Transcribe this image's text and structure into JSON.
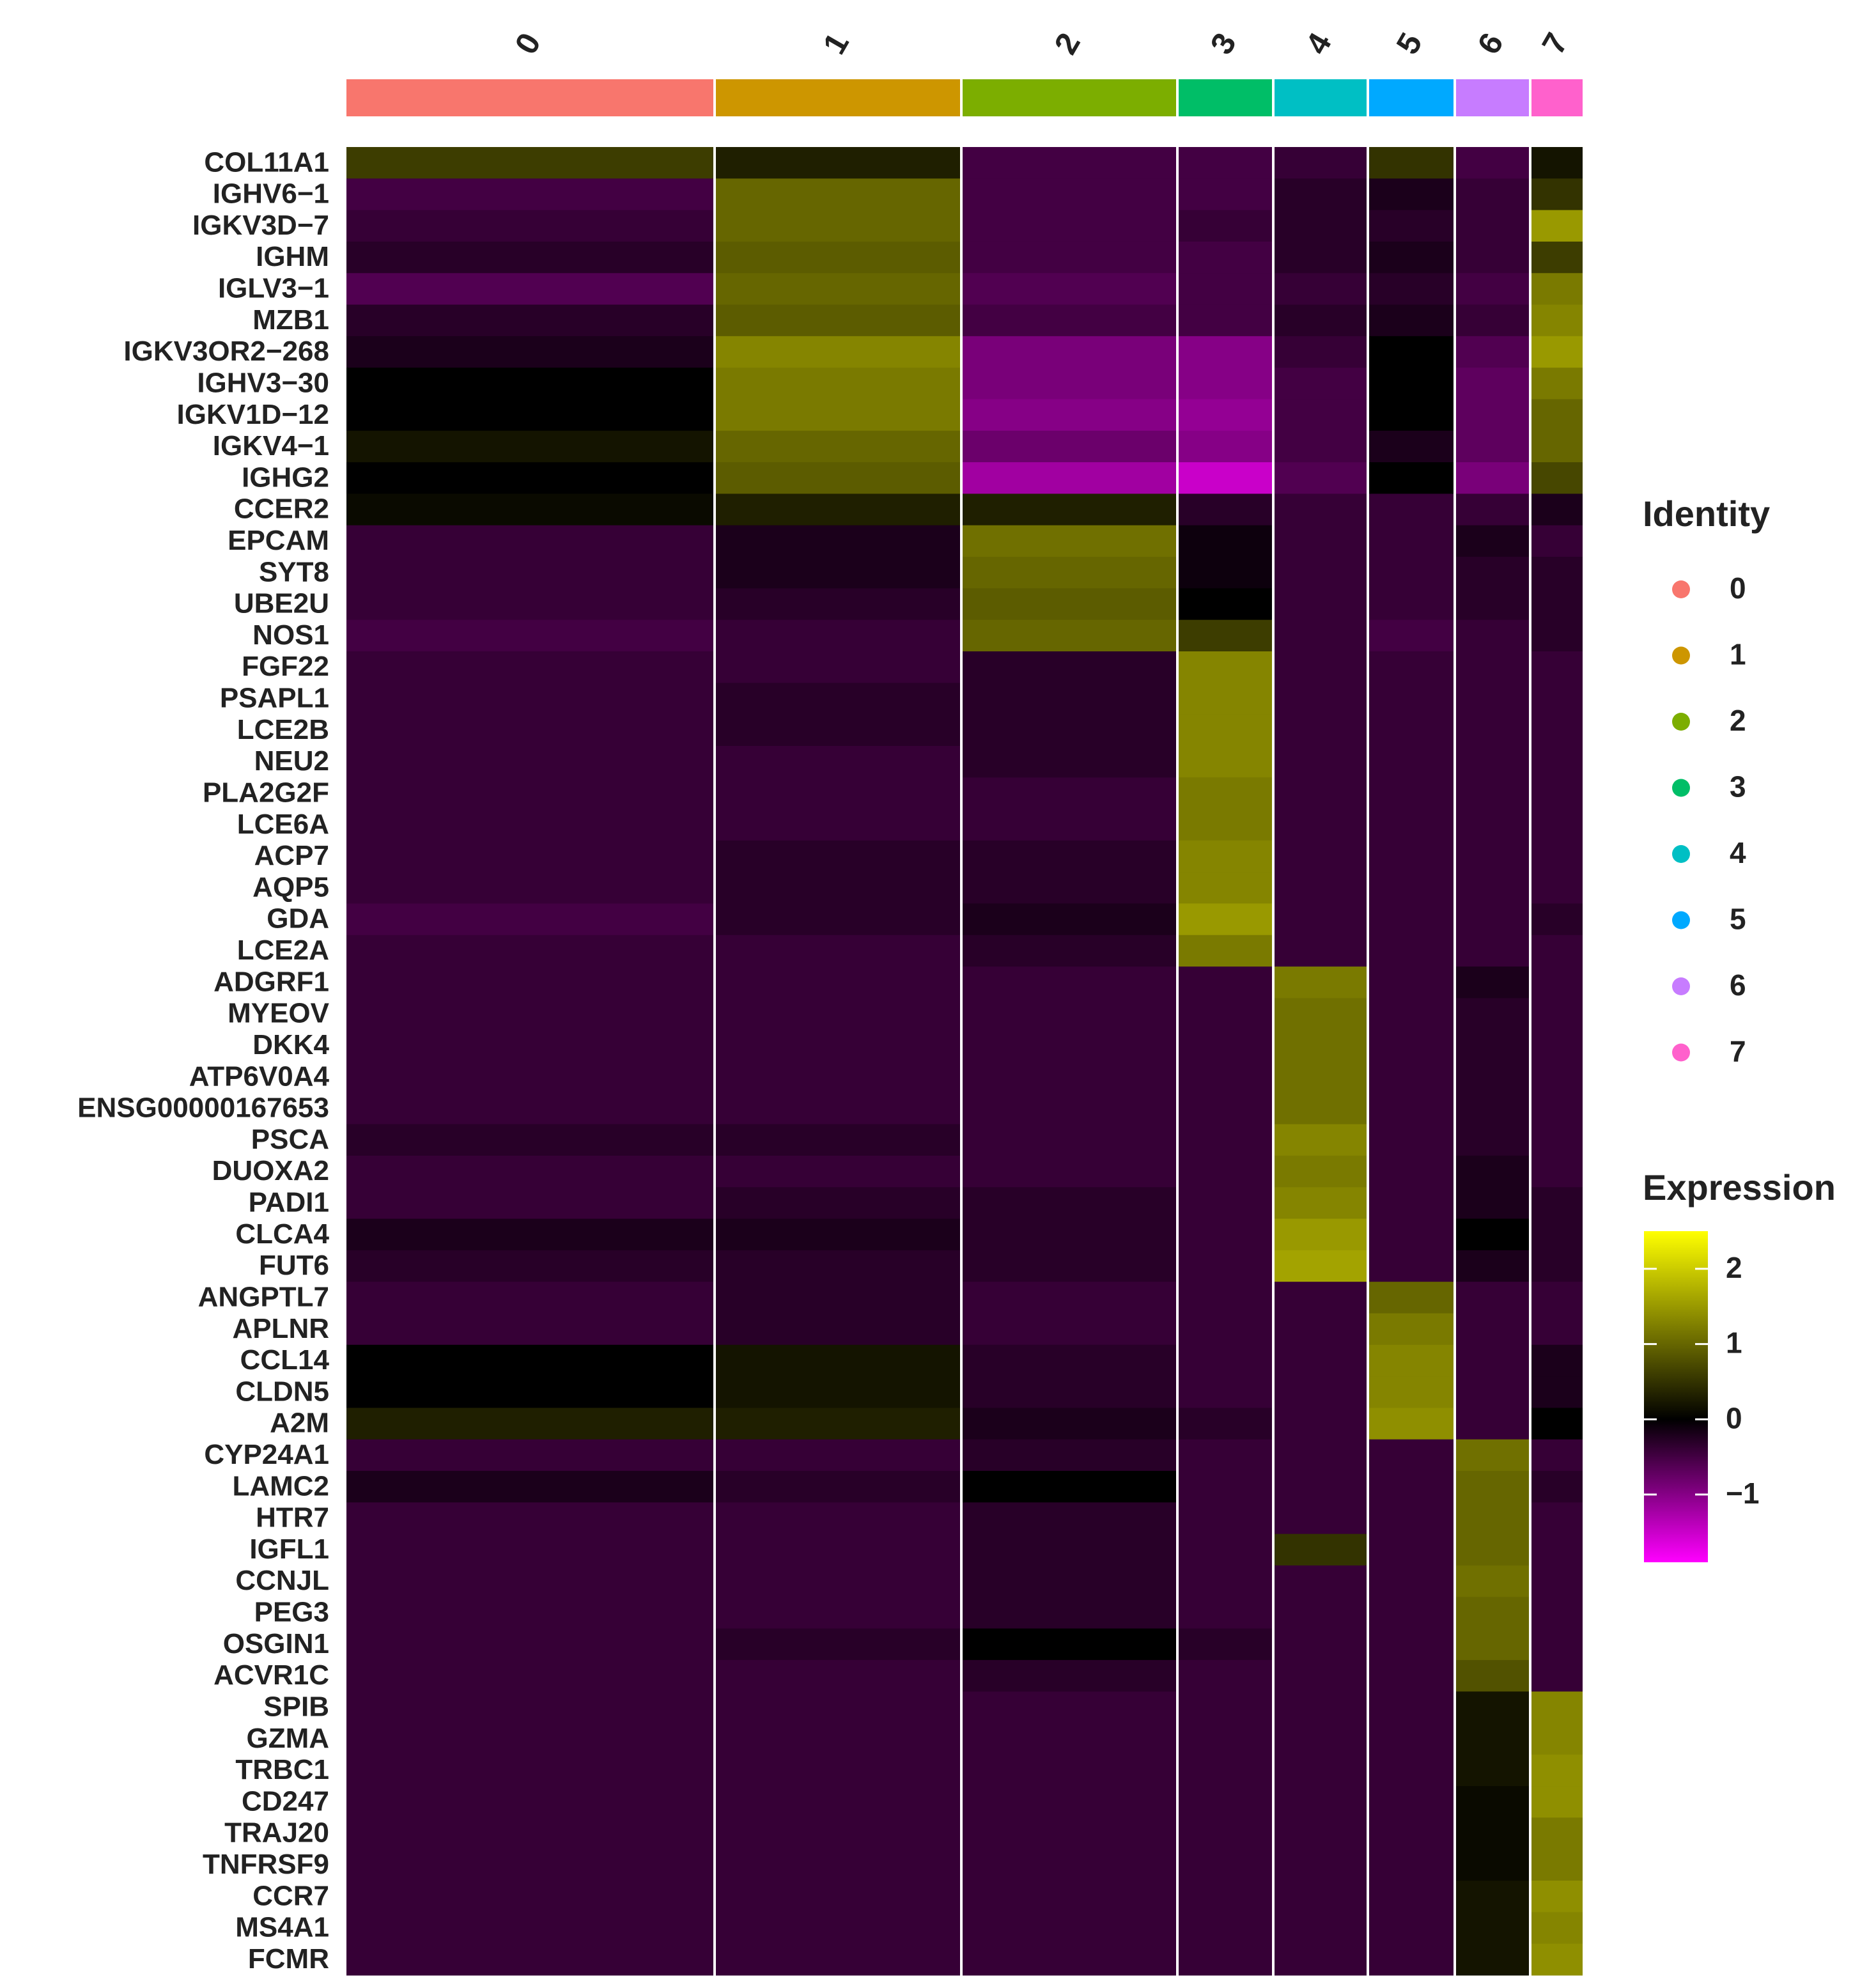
{
  "chart_data": {
    "type": "heatmap",
    "identity_title": "Identity",
    "expression_title": "Expression",
    "clusters": [
      "0",
      "1",
      "2",
      "3",
      "4",
      "5",
      "6",
      "7"
    ],
    "cluster_colors": [
      "#F8766D",
      "#CD9600",
      "#7CAE00",
      "#00BE67",
      "#00BFC4",
      "#00A9FF",
      "#C77CFF",
      "#FF61CC"
    ],
    "cluster_sizes": [
      287,
      191,
      167,
      73,
      72,
      66,
      57,
      40
    ],
    "genes": [
      "COL11A1",
      "IGHV6−1",
      "IGKV3D−7",
      "IGHM",
      "IGLV3−1",
      "MZB1",
      "IGKV3OR2−268",
      "IGHV3−30",
      "IGKV1D−12",
      "IGKV4−1",
      "IGHG2",
      "CCER2",
      "EPCAM",
      "SYT8",
      "UBE2U",
      "NOS1",
      "FGF22",
      "PSAPL1",
      "LCE2B",
      "NEU2",
      "PLA2G2F",
      "LCE6A",
      "ACP7",
      "AQP5",
      "GDA",
      "LCE2A",
      "ADGRF1",
      "MYEOV",
      "DKK4",
      "ATP6V0A4",
      "ENSG00000167653",
      "PSCA",
      "DUOXA2",
      "PADI1",
      "CLCA4",
      "FUT6",
      "ANGPTL7",
      "APLNR",
      "CCL14",
      "CLDN5",
      "A2M",
      "CYP24A1",
      "LAMC2",
      "HTR7",
      "IGFL1",
      "CCNJL",
      "PEG3",
      "OSGIN1",
      "ACVR1C",
      "SPIB",
      "GZMA",
      "TRBC1",
      "CD247",
      "TRAJ20",
      "TNFRSF9",
      "CCR7",
      "MS4A1",
      "FCMR"
    ],
    "values": [
      [
        0.6,
        0.3,
        -0.5,
        -0.5,
        -0.4,
        0.5,
        -0.5,
        0.2
      ],
      [
        -0.5,
        1.0,
        -0.5,
        -0.5,
        -0.3,
        -0.2,
        -0.4,
        0.5
      ],
      [
        -0.4,
        1.0,
        -0.5,
        -0.4,
        -0.3,
        -0.3,
        -0.4,
        1.5
      ],
      [
        -0.3,
        0.9,
        -0.5,
        -0.5,
        -0.3,
        -0.2,
        -0.4,
        0.6
      ],
      [
        -0.6,
        1.0,
        -0.6,
        -0.5,
        -0.4,
        -0.3,
        -0.5,
        1.2
      ],
      [
        -0.3,
        0.9,
        -0.5,
        -0.5,
        -0.3,
        -0.2,
        -0.4,
        1.3
      ],
      [
        -0.2,
        1.3,
        -0.9,
        -1.0,
        -0.4,
        0,
        -0.6,
        1.5
      ],
      [
        0,
        1.2,
        -0.9,
        -1.0,
        -0.5,
        0,
        -0.7,
        1.2
      ],
      [
        0,
        1.2,
        -1.0,
        -1.1,
        -0.5,
        0,
        -0.7,
        1.0
      ],
      [
        0.2,
        1.0,
        -0.8,
        -1.0,
        -0.5,
        -0.2,
        -0.7,
        1.0
      ],
      [
        0,
        0.9,
        -1.2,
        -1.5,
        -0.6,
        0,
        -0.9,
        0.7
      ],
      [
        0.1,
        0.3,
        0.3,
        -0.3,
        -0.4,
        -0.4,
        -0.4,
        -0.2
      ],
      [
        -0.4,
        -0.2,
        1.1,
        -0.1,
        -0.4,
        -0.4,
        -0.2,
        -0.4
      ],
      [
        -0.4,
        -0.2,
        1.0,
        -0.1,
        -0.4,
        -0.4,
        -0.3,
        -0.3
      ],
      [
        -0.4,
        -0.3,
        0.9,
        0,
        -0.4,
        -0.4,
        -0.3,
        -0.3
      ],
      [
        -0.5,
        -0.4,
        1.0,
        0.6,
        -0.4,
        -0.5,
        -0.4,
        -0.3
      ],
      [
        -0.4,
        -0.4,
        -0.3,
        1.3,
        -0.4,
        -0.4,
        -0.4,
        -0.4
      ],
      [
        -0.4,
        -0.3,
        -0.3,
        1.3,
        -0.4,
        -0.4,
        -0.4,
        -0.4
      ],
      [
        -0.4,
        -0.3,
        -0.3,
        1.3,
        -0.4,
        -0.4,
        -0.4,
        -0.4
      ],
      [
        -0.4,
        -0.4,
        -0.3,
        1.3,
        -0.4,
        -0.4,
        -0.4,
        -0.4
      ],
      [
        -0.4,
        -0.4,
        -0.4,
        1.2,
        -0.4,
        -0.4,
        -0.4,
        -0.4
      ],
      [
        -0.4,
        -0.4,
        -0.4,
        1.2,
        -0.4,
        -0.4,
        -0.4,
        -0.4
      ],
      [
        -0.4,
        -0.3,
        -0.3,
        1.3,
        -0.4,
        -0.4,
        -0.4,
        -0.4
      ],
      [
        -0.4,
        -0.3,
        -0.3,
        1.3,
        -0.4,
        -0.4,
        -0.4,
        -0.4
      ],
      [
        -0.5,
        -0.3,
        -0.2,
        1.5,
        -0.4,
        -0.4,
        -0.4,
        -0.3
      ],
      [
        -0.4,
        -0.4,
        -0.3,
        1.2,
        -0.4,
        -0.4,
        -0.4,
        -0.4
      ],
      [
        -0.4,
        -0.4,
        -0.4,
        -0.4,
        1.2,
        -0.4,
        -0.2,
        -0.4
      ],
      [
        -0.4,
        -0.4,
        -0.4,
        -0.4,
        1.1,
        -0.4,
        -0.3,
        -0.4
      ],
      [
        -0.4,
        -0.4,
        -0.4,
        -0.4,
        1.1,
        -0.4,
        -0.3,
        -0.4
      ],
      [
        -0.4,
        -0.4,
        -0.4,
        -0.4,
        1.1,
        -0.4,
        -0.3,
        -0.4
      ],
      [
        -0.4,
        -0.4,
        -0.4,
        -0.4,
        1.1,
        -0.4,
        -0.3,
        -0.4
      ],
      [
        -0.3,
        -0.3,
        -0.4,
        -0.4,
        1.3,
        -0.4,
        -0.3,
        -0.4
      ],
      [
        -0.4,
        -0.4,
        -0.4,
        -0.4,
        1.2,
        -0.4,
        -0.2,
        -0.4
      ],
      [
        -0.4,
        -0.3,
        -0.3,
        -0.4,
        1.3,
        -0.4,
        -0.2,
        -0.3
      ],
      [
        -0.2,
        -0.2,
        -0.3,
        -0.4,
        1.5,
        -0.4,
        0,
        -0.3
      ],
      [
        -0.3,
        -0.3,
        -0.3,
        -0.4,
        1.6,
        -0.4,
        -0.2,
        -0.3
      ],
      [
        -0.4,
        -0.3,
        -0.4,
        -0.4,
        -0.4,
        1.0,
        -0.4,
        -0.4
      ],
      [
        -0.4,
        -0.3,
        -0.4,
        -0.4,
        -0.4,
        1.2,
        -0.4,
        -0.4
      ],
      [
        0,
        0.2,
        -0.3,
        -0.4,
        -0.4,
        1.3,
        -0.4,
        -0.2
      ],
      [
        0,
        0.2,
        -0.3,
        -0.4,
        -0.4,
        1.3,
        -0.4,
        -0.2
      ],
      [
        0.3,
        0.3,
        -0.2,
        -0.3,
        -0.4,
        1.4,
        -0.4,
        0
      ],
      [
        -0.4,
        -0.4,
        -0.3,
        -0.4,
        -0.4,
        -0.4,
        1.1,
        -0.4
      ],
      [
        -0.2,
        -0.3,
        0,
        -0.4,
        -0.4,
        -0.4,
        1.0,
        -0.3
      ],
      [
        -0.4,
        -0.4,
        -0.3,
        -0.4,
        -0.4,
        -0.4,
        1.0,
        -0.4
      ],
      [
        -0.4,
        -0.4,
        -0.3,
        -0.4,
        0.5,
        -0.4,
        1.0,
        -0.4
      ],
      [
        -0.4,
        -0.4,
        -0.3,
        -0.4,
        -0.4,
        -0.4,
        1.1,
        -0.4
      ],
      [
        -0.4,
        -0.4,
        -0.3,
        -0.4,
        -0.4,
        -0.4,
        1.0,
        -0.4
      ],
      [
        -0.4,
        -0.3,
        0,
        -0.3,
        -0.4,
        -0.4,
        1.0,
        -0.4
      ],
      [
        -0.4,
        -0.4,
        -0.3,
        -0.4,
        -0.4,
        -0.4,
        0.8,
        -0.4
      ],
      [
        -0.4,
        -0.4,
        -0.4,
        -0.4,
        -0.4,
        -0.4,
        0.2,
        1.3
      ],
      [
        -0.4,
        -0.4,
        -0.4,
        -0.4,
        -0.4,
        -0.4,
        0.2,
        1.3
      ],
      [
        -0.4,
        -0.4,
        -0.4,
        -0.4,
        -0.4,
        -0.4,
        0.2,
        1.4
      ],
      [
        -0.4,
        -0.4,
        -0.4,
        -0.4,
        -0.4,
        -0.4,
        0.1,
        1.4
      ],
      [
        -0.4,
        -0.4,
        -0.4,
        -0.4,
        -0.4,
        -0.4,
        0.1,
        1.2
      ],
      [
        -0.4,
        -0.4,
        -0.4,
        -0.4,
        -0.4,
        -0.4,
        0.1,
        1.2
      ],
      [
        -0.4,
        -0.4,
        -0.4,
        -0.4,
        -0.4,
        -0.4,
        0.2,
        1.4
      ],
      [
        -0.4,
        -0.4,
        -0.4,
        -0.4,
        -0.4,
        -0.4,
        0.2,
        1.3
      ],
      [
        -0.4,
        -0.4,
        -0.4,
        -0.4,
        -0.4,
        -0.4,
        0.2,
        1.4
      ]
    ],
    "clim": [
      -1.9,
      2.5
    ],
    "colorbar_ticks": [
      2,
      1,
      0,
      {
        "value": -1,
        "label": "−1"
      }
    ],
    "color_low": "#FF00FF",
    "color_mid": "#000000",
    "color_high": "#FFFF00"
  }
}
